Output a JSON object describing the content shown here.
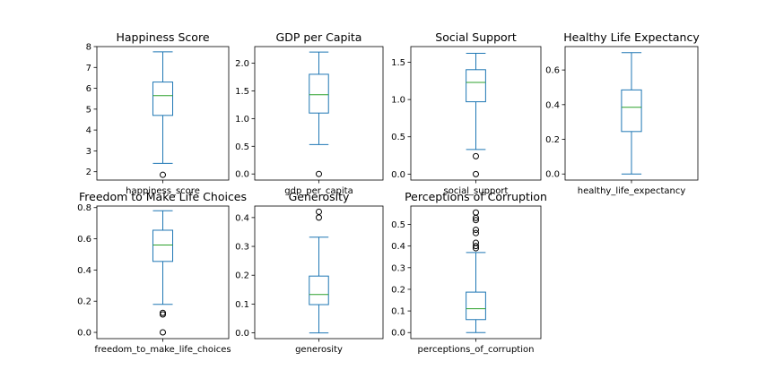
{
  "colors": {
    "box": "#1f77b4",
    "median": "#2ca02c",
    "flier": "#000000",
    "axes": "#000000"
  },
  "chart_data": [
    {
      "type": "box",
      "title": "Happiness Score",
      "category": "happiness_score",
      "ylim": [
        1.6,
        8.0
      ],
      "yticks": [
        2,
        3,
        4,
        5,
        6,
        7,
        8
      ],
      "whisker_low": 2.4,
      "q1": 4.7,
      "median": 5.65,
      "q3": 6.3,
      "whisker_high": 7.75,
      "fliers": [
        1.85
      ]
    },
    {
      "type": "box",
      "title": "GDP per Capita",
      "category": "gdp_per_capita",
      "ylim": [
        -0.11,
        2.3
      ],
      "yticks": [
        0.0,
        0.5,
        1.0,
        1.5,
        2.0
      ],
      "ytick_labels": [
        "0.0",
        "0.5",
        "1.0",
        "1.5",
        "2.0"
      ],
      "whisker_low": 0.53,
      "q1": 1.1,
      "median": 1.43,
      "q3": 1.8,
      "whisker_high": 2.2,
      "fliers": [
        0.0
      ]
    },
    {
      "type": "box",
      "title": "Social Support",
      "category": "social_support",
      "ylim": [
        -0.08,
        1.71
      ],
      "yticks": [
        0.0,
        0.5,
        1.0,
        1.5
      ],
      "ytick_labels": [
        "0.0",
        "0.5",
        "1.0",
        "1.5"
      ],
      "whisker_low": 0.33,
      "q1": 0.97,
      "median": 1.23,
      "q3": 1.4,
      "whisker_high": 1.62,
      "fliers": [
        0.24,
        0.0
      ]
    },
    {
      "type": "box",
      "title": "Healthy Life Expectancy",
      "category": "healthy_life_expectancy",
      "ylim": [
        -0.035,
        0.735
      ],
      "yticks": [
        0.0,
        0.2,
        0.4,
        0.6
      ],
      "ytick_labels": [
        "0.0",
        "0.2",
        "0.4",
        "0.6"
      ],
      "whisker_low": 0.0,
      "q1": 0.245,
      "median": 0.385,
      "q3": 0.485,
      "whisker_high": 0.7,
      "fliers": []
    },
    {
      "type": "box",
      "title": "Freedom to Make Life Choices",
      "category": "freedom_to_make_life_choices",
      "ylim": [
        -0.04,
        0.81
      ],
      "yticks": [
        0.0,
        0.2,
        0.4,
        0.6,
        0.8
      ],
      "ytick_labels": [
        "0.0",
        "0.2",
        "0.4",
        "0.6",
        "0.8"
      ],
      "whisker_low": 0.18,
      "q1": 0.455,
      "median": 0.56,
      "q3": 0.655,
      "whisker_high": 0.78,
      "fliers": [
        0.125,
        0.115,
        0.0
      ]
    },
    {
      "type": "box",
      "title": "Generosity",
      "category": "generosity",
      "ylim": [
        -0.02,
        0.44
      ],
      "yticks": [
        0.0,
        0.1,
        0.2,
        0.3,
        0.4
      ],
      "ytick_labels": [
        "0.0",
        "0.1",
        "0.2",
        "0.3",
        "0.4"
      ],
      "whisker_low": 0.0,
      "q1": 0.098,
      "median": 0.133,
      "q3": 0.197,
      "whisker_high": 0.332,
      "fliers": [
        0.42,
        0.4
      ]
    },
    {
      "type": "box",
      "title": "Perceptions of Corruption",
      "category": "perceptions_of_corruption",
      "ylim": [
        -0.028,
        0.585
      ],
      "yticks": [
        0.0,
        0.1,
        0.2,
        0.3,
        0.4,
        0.5
      ],
      "ytick_labels": [
        "0.0",
        "0.1",
        "0.2",
        "0.3",
        "0.4",
        "0.5"
      ],
      "whisker_low": 0.0,
      "q1": 0.06,
      "median": 0.11,
      "q3": 0.187,
      "whisker_high": 0.37,
      "fliers": [
        0.555,
        0.53,
        0.52,
        0.475,
        0.46,
        0.415,
        0.4,
        0.39
      ]
    }
  ]
}
